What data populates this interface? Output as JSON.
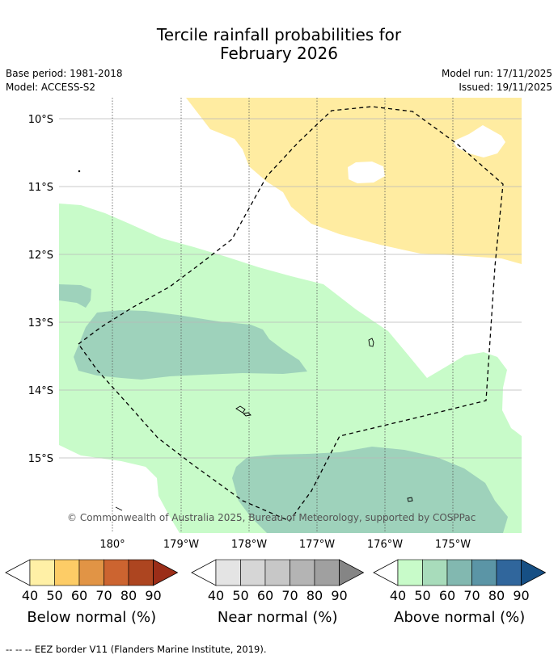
{
  "title_line1": "Tercile rainfall probabilities for",
  "title_line2": "February 2026",
  "base_period": "Base period: 1981-2018",
  "model": "Model: ACCESS-S2",
  "model_run": "Model run: 17/11/2025",
  "issued": "Issued: 19/11/2025",
  "lat_labels": [
    "10°S",
    "11°S",
    "12°S",
    "13°S",
    "14°S",
    "15°S"
  ],
  "lon_labels": [
    "180°",
    "179°W",
    "178°W",
    "177°W",
    "176°W",
    "175°W"
  ],
  "copyright": "© Commonwealth of Australia 2025, Bureau of Meteorology, supported by COSPPac",
  "colorbars": [
    {
      "title": "Below normal (%)",
      "ticks": [
        "40",
        "50",
        "60",
        "70",
        "80",
        "90"
      ],
      "colors": [
        "#fff0a6",
        "#fdcc66",
        "#e19445",
        "#cc6430",
        "#ad4520",
        "#9b2d18"
      ]
    },
    {
      "title": "Near normal (%)",
      "ticks": [
        "40",
        "50",
        "60",
        "70",
        "80",
        "90"
      ],
      "colors": [
        "#e4e4e4",
        "#d6d6d6",
        "#c7c7c7",
        "#b4b4b4",
        "#a0a0a0",
        "#858585"
      ]
    },
    {
      "title": "Above normal (%)",
      "ticks": [
        "40",
        "50",
        "60",
        "70",
        "80",
        "90"
      ],
      "colors": [
        "#c8fbc9",
        "#a8dcbb",
        "#82b8b0",
        "#5b95a6",
        "#30669c",
        "#164f84"
      ]
    }
  ],
  "legend_footer": "-- -- -- EEZ border V11 (Flanders Marine Institute, 2019).",
  "colors": {
    "below_40_50": "#ffeca1",
    "above_40_50": "#c8fbc9",
    "above_50_60": "#9ed2bb"
  }
}
